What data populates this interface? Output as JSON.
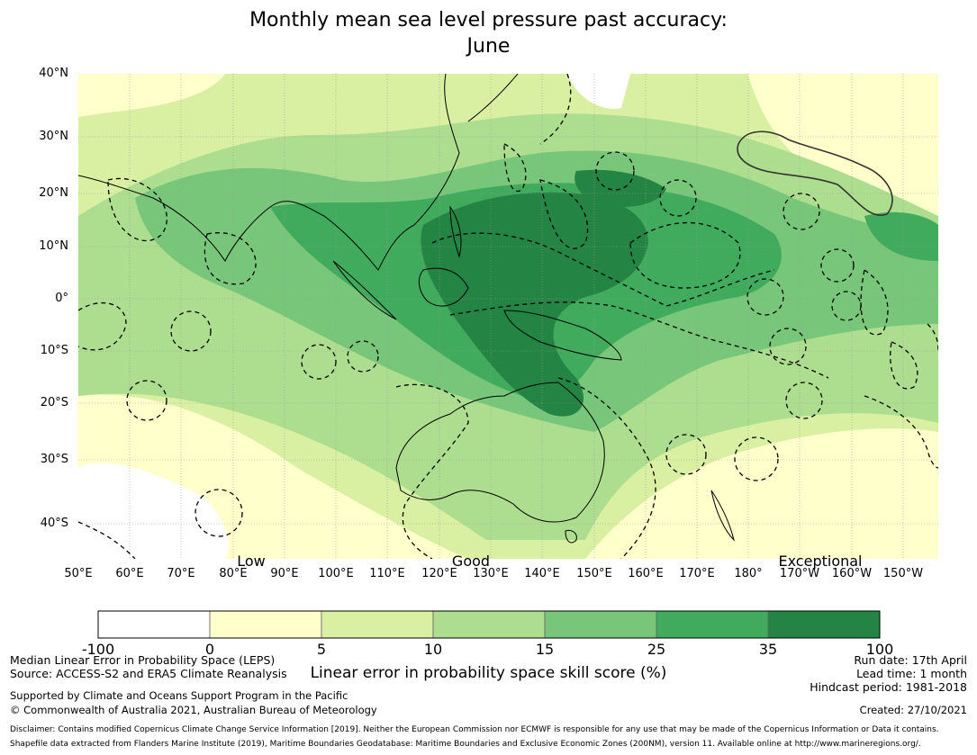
{
  "title": {
    "line1": "Monthly mean sea level pressure past accuracy:",
    "line2": "June"
  },
  "map": {
    "lat_labels": [
      "40°N",
      "30°N",
      "20°N",
      "10°N",
      "0°",
      "10°S",
      "20°S",
      "30°S",
      "40°S"
    ],
    "lon_labels": [
      "50°E",
      "60°E",
      "70°E",
      "80°E",
      "90°E",
      "100°E",
      "110°E",
      "120°E",
      "130°E",
      "140°E",
      "150°E",
      "160°E",
      "170°E",
      "180°",
      "170°W",
      "160°W",
      "150°W"
    ],
    "category_labels": [
      "Low",
      "Good",
      "Exceptional"
    ],
    "grid": true,
    "overlays": [
      "coastlines",
      "maritime-boundaries-dashed"
    ]
  },
  "colorbar": {
    "ticks": [
      "-100",
      "0",
      "5",
      "10",
      "15",
      "25",
      "35",
      "100"
    ],
    "colors": [
      "#ffffff",
      "#ffffcc",
      "#d9f0a3",
      "#addd8e",
      "#78c679",
      "#41ab5d",
      "#238443"
    ],
    "label": "Linear error in probability space skill score (%)"
  },
  "footer": {
    "left1": "Median Linear Error in Probability Space (LEPS)",
    "left2": "Source: ACCESS-S2 and ERA5 Climate Reanalysis",
    "left3": "Supported by Climate and Oceans Support Program in the Pacific",
    "left4": "© Commonwealth of Australia 2021, Australian Bureau of Meteorology",
    "run_date": "Run date: 17th April",
    "lead_time": "Lead time: 1 month",
    "hindcast": "Hindcast period: 1981-2018",
    "created": "Created: 27/10/2021",
    "disclaimer": "Disclaimer: Contains modified Copernicus Climate Change Service Information [2019]. Neither the European Commission nor ECMWF is responsible for any use that may be made of the Copernicus Information or Data it contains.",
    "shapefile": "Shapefile data extracted from Flanders Marine Institute (2019), Maritime Boundaries Geodatabase: Maritime Boundaries and Exclusive Economic Zones (200NM), version 11. Available online at http://www.marineregions.org/."
  }
}
